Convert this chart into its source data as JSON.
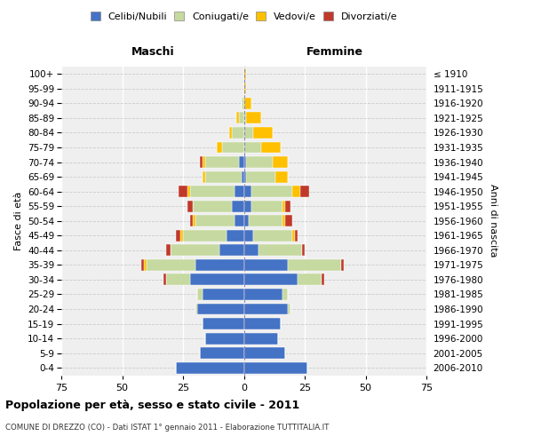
{
  "age_groups": [
    "0-4",
    "5-9",
    "10-14",
    "15-19",
    "20-24",
    "25-29",
    "30-34",
    "35-39",
    "40-44",
    "45-49",
    "50-54",
    "55-59",
    "60-64",
    "65-69",
    "70-74",
    "75-79",
    "80-84",
    "85-89",
    "90-94",
    "95-99",
    "100+"
  ],
  "birth_years": [
    "2006-2010",
    "2001-2005",
    "1996-2000",
    "1991-1995",
    "1986-1990",
    "1981-1985",
    "1976-1980",
    "1971-1975",
    "1966-1970",
    "1961-1965",
    "1956-1960",
    "1951-1955",
    "1946-1950",
    "1941-1945",
    "1936-1940",
    "1931-1935",
    "1926-1930",
    "1921-1925",
    "1916-1920",
    "1911-1915",
    "≤ 1910"
  ],
  "maschi": {
    "celibi": [
      28,
      18,
      16,
      17,
      19,
      17,
      22,
      20,
      10,
      7,
      4,
      5,
      4,
      1,
      2,
      0,
      0,
      0,
      0,
      0,
      0
    ],
    "coniugati": [
      0,
      0,
      0,
      0,
      1,
      2,
      10,
      20,
      20,
      18,
      16,
      16,
      18,
      15,
      14,
      9,
      5,
      2,
      1,
      0,
      0
    ],
    "vedovi": [
      0,
      0,
      0,
      0,
      0,
      0,
      0,
      1,
      0,
      1,
      1,
      0,
      1,
      1,
      1,
      2,
      1,
      1,
      0,
      0,
      0
    ],
    "divorziati": [
      0,
      0,
      0,
      0,
      0,
      0,
      1,
      1,
      2,
      2,
      1,
      2,
      4,
      0,
      1,
      0,
      0,
      0,
      0,
      0,
      0
    ]
  },
  "femmine": {
    "nubili": [
      26,
      17,
      14,
      15,
      18,
      16,
      22,
      18,
      6,
      4,
      2,
      3,
      3,
      1,
      1,
      0,
      0,
      0,
      0,
      0,
      0
    ],
    "coniugate": [
      0,
      0,
      0,
      0,
      1,
      2,
      10,
      22,
      18,
      16,
      14,
      13,
      17,
      12,
      11,
      7,
      4,
      1,
      0,
      0,
      0
    ],
    "vedove": [
      0,
      0,
      0,
      0,
      0,
      0,
      0,
      0,
      0,
      1,
      1,
      1,
      3,
      5,
      6,
      8,
      8,
      6,
      3,
      1,
      1
    ],
    "divorziate": [
      0,
      0,
      0,
      0,
      0,
      0,
      1,
      1,
      1,
      1,
      3,
      2,
      4,
      0,
      0,
      0,
      0,
      0,
      0,
      0,
      0
    ]
  },
  "colors": {
    "celibi": "#4472c4",
    "coniugati": "#c5d9a0",
    "vedovi": "#ffc000",
    "divorziati": "#c0392b"
  },
  "xlim": 75,
  "title": "Popolazione per età, sesso e stato civile - 2011",
  "subtitle": "COMUNE DI DREZZO (CO) - Dati ISTAT 1° gennaio 2011 - Elaborazione TUTTITALIA.IT",
  "ylabel_left": "Fasce di età",
  "ylabel_right": "Anni di nascita",
  "xlabel_maschi": "Maschi",
  "xlabel_femmine": "Femmine",
  "legend_labels": [
    "Celibi/Nubili",
    "Coniugati/e",
    "Vedovi/e",
    "Divorziati/e"
  ],
  "bg_color": "#efefef",
  "xticks": [
    -75,
    -50,
    -25,
    0,
    25,
    50,
    75
  ],
  "xticklabels": [
    "75",
    "50",
    "25",
    "0",
    "25",
    "50",
    "75"
  ]
}
